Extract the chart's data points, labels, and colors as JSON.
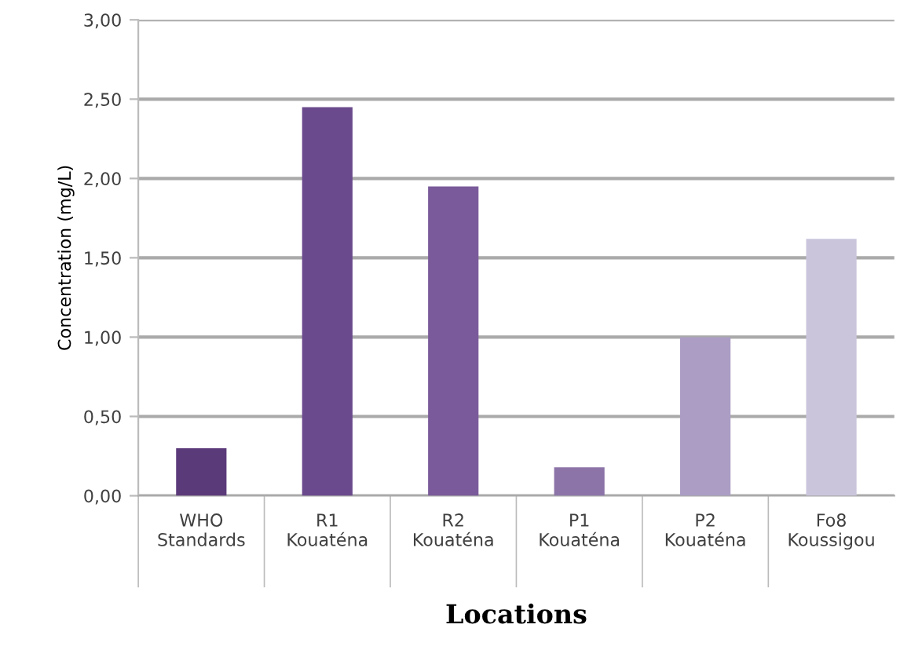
{
  "chart_data": {
    "type": "bar",
    "xlabel": "Locations",
    "ylabel": "Concentration (mg/L)",
    "categories": [
      "WHO\nStandards",
      "R1\nKouaténa",
      "R2\nKouaténa",
      "P1\nKouaténa",
      "P2\nKouaténa",
      "Fo8\nKoussigou"
    ],
    "values": [
      0.3,
      2.45,
      1.95,
      0.18,
      1.0,
      1.62
    ],
    "colors": [
      "#5b3a7a",
      "#6a4a8c",
      "#7a5a9a",
      "#8c74a8",
      "#ab9dc4",
      "#cbc5dc"
    ],
    "ylim": [
      0,
      3
    ],
    "yticks": [
      {
        "value": 0,
        "label": "0,00"
      },
      {
        "value": 0.5,
        "label": "0,50"
      },
      {
        "value": 1,
        "label": "1,00"
      },
      {
        "value": 1.5,
        "label": "1,50"
      },
      {
        "value": 2,
        "label": "2,00"
      },
      {
        "value": 2.5,
        "label": "2,50"
      },
      {
        "value": 3,
        "label": "3,00"
      }
    ],
    "grid": "y",
    "legend": false
  }
}
